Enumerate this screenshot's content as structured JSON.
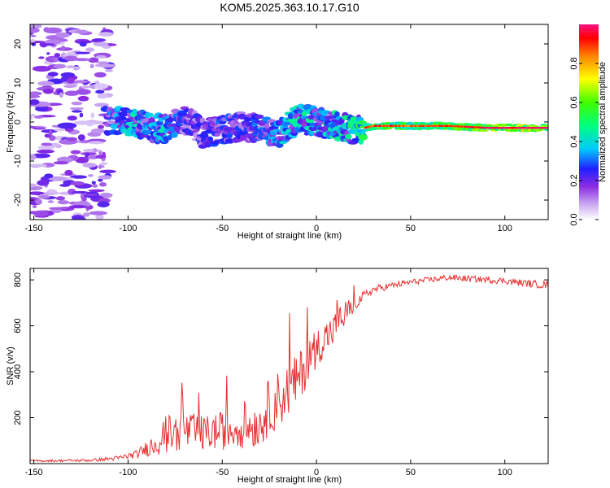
{
  "title": "KOM5.2025.363.10.17.G10",
  "chart_data": [
    {
      "type": "heatmap",
      "xlabel": "Height of straight line (km)",
      "ylabel": "Frequency (Hz)",
      "xlim": [
        -152,
        123
      ],
      "ylim": [
        -25,
        25
      ],
      "xticks": [
        -150,
        -100,
        -50,
        0,
        50,
        100
      ],
      "yticks": [
        -20,
        -10,
        0,
        10,
        20
      ],
      "colorbar": {
        "label": "Normalized spectral amplitude",
        "range": [
          0,
          1
        ],
        "ticks": [
          0.0,
          0.2,
          0.4,
          0.6,
          0.8
        ],
        "colors": [
          "#ffffff",
          "#c9a8f2",
          "#8a2be2",
          "#2020ff",
          "#00c8ff",
          "#00ff80",
          "#40ff00",
          "#ffff00",
          "#ff8000",
          "#ff0000",
          "#ff1080"
        ]
      },
      "signal_track": {
        "description_points_x": [
          -110,
          -100,
          -90,
          -80,
          -70,
          -60,
          -50,
          -40,
          -30,
          -20,
          -10,
          0,
          10,
          20,
          30,
          50,
          70,
          90,
          110,
          123
        ],
        "frequency_hz": [
          0,
          0,
          -1,
          -2,
          1,
          -3,
          -2,
          -1,
          -2,
          -3,
          1,
          0,
          -1,
          -2,
          -1,
          -1,
          -1,
          -1.5,
          -1.5,
          -1.5
        ],
        "amplitude": [
          0.3,
          0.45,
          0.35,
          0.4,
          0.25,
          0.25,
          0.3,
          0.25,
          0.3,
          0.35,
          0.45,
          0.4,
          0.45,
          0.5,
          0.6,
          0.55,
          0.6,
          0.65,
          0.7,
          0.7
        ]
      }
    },
    {
      "type": "line",
      "xlabel": "Height of straight line (km)",
      "ylabel": "SNR (v/v)",
      "xlim": [
        -152,
        123
      ],
      "ylim": [
        0,
        850
      ],
      "xticks": [
        -150,
        -100,
        -50,
        0,
        50,
        100
      ],
      "yticks": [
        200,
        400,
        600,
        800
      ],
      "color": "#e83030",
      "envelope": {
        "x": [
          -152,
          -120,
          -105,
          -95,
          -88,
          -80,
          -70,
          -60,
          -50,
          -40,
          -30,
          -25,
          -20,
          -15,
          -10,
          -5,
          0,
          5,
          10,
          15,
          20,
          25,
          30,
          40,
          50,
          60,
          70,
          80,
          90,
          100,
          110,
          123
        ],
        "base": [
          10,
          12,
          20,
          35,
          60,
          90,
          110,
          100,
          110,
          120,
          130,
          200,
          230,
          270,
          320,
          400,
          470,
          520,
          560,
          620,
          680,
          720,
          750,
          770,
          785,
          795,
          805,
          800,
          795,
          790,
          780,
          770
        ],
        "spread": [
          6,
          8,
          15,
          25,
          60,
          120,
          120,
          110,
          120,
          130,
          140,
          180,
          180,
          170,
          160,
          150,
          120,
          110,
          110,
          100,
          40,
          30,
          25,
          20,
          18,
          18,
          20,
          20,
          20,
          20,
          22,
          25
        ]
      }
    }
  ]
}
